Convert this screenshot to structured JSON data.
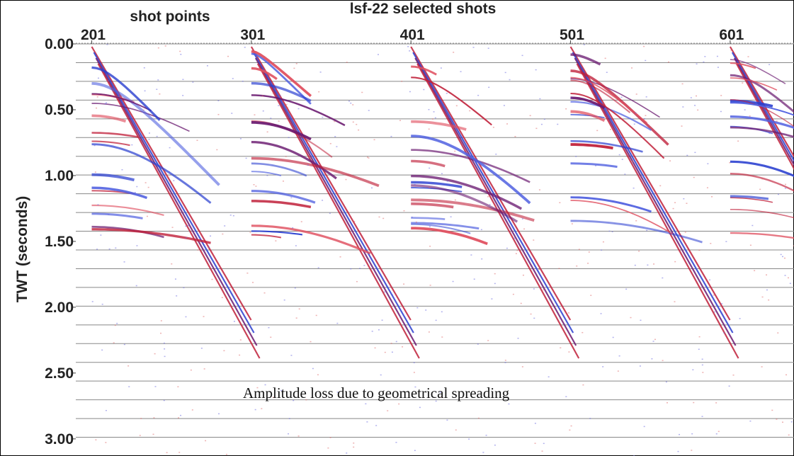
{
  "chart_data": {
    "type": "seismic",
    "title": "lsf-22 selected shots",
    "xlabel": "shot points",
    "ylabel": "TWT (seconds)",
    "annotation": "Amplitude loss due to geometrical spreading",
    "xlim": [
      191,
      641
    ],
    "xticks": [
      201,
      301,
      401,
      501,
      601
    ],
    "ylim": [
      0,
      3.13
    ],
    "yticks": [
      {
        "value": 0,
        "label": "0.00"
      },
      {
        "value": 0.5,
        "label": "0.50"
      },
      {
        "value": 1,
        "label": "1.00"
      },
      {
        "value": 1.5,
        "label": "1.50"
      },
      {
        "value": 2,
        "label": "2.00"
      },
      {
        "value": 2.5,
        "label": "2.50"
      },
      {
        "value": 3,
        "label": "3.00"
      }
    ]
  }
}
